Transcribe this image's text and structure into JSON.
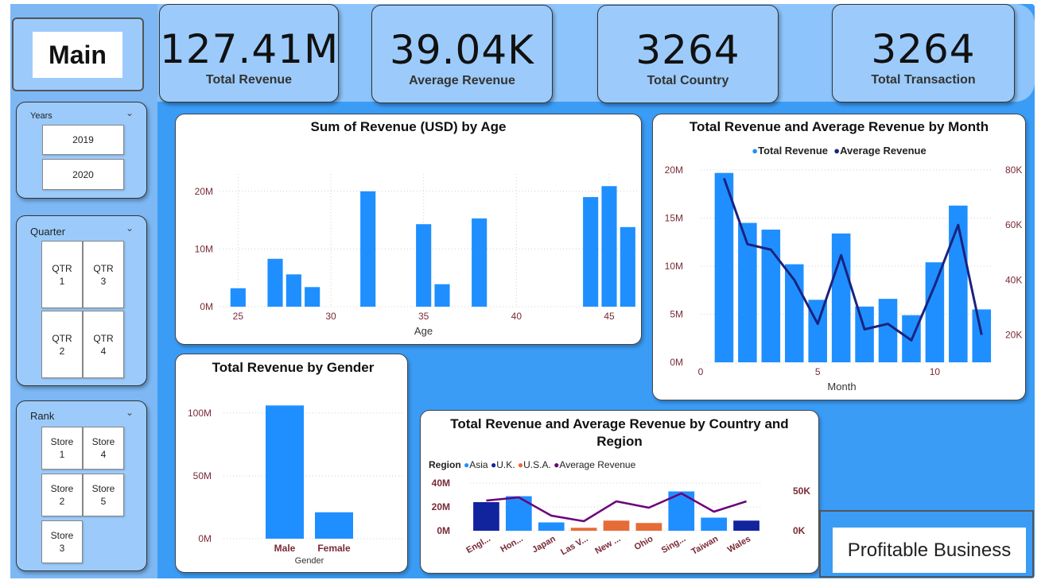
{
  "kpis": [
    {
      "value": "127.41M",
      "label": "Total Revenue"
    },
    {
      "value": "39.04K",
      "label": "Average Revenue"
    },
    {
      "value": "3264",
      "label": "Total Country"
    },
    {
      "value": "3264",
      "label": "Total Transaction"
    }
  ],
  "nav": {
    "main_label": "Main"
  },
  "slicers": {
    "years": {
      "title": "Years",
      "items": [
        "2019",
        "2020"
      ]
    },
    "quarter": {
      "title": "Quarter",
      "items": [
        "QTR\n1",
        "QTR\n3",
        "QTR\n2",
        "QTR\n4"
      ]
    },
    "rank": {
      "title": "Rank",
      "items": [
        "Store\n1",
        "Store\n4",
        "Store\n2",
        "Store\n5",
        "Store\n3"
      ]
    }
  },
  "footer": {
    "text": "Profitable Business"
  },
  "colors": {
    "bar": "#1f8fff",
    "line": "#1a237e",
    "uk": "#12239e",
    "usa": "#e66c37",
    "purple": "#6b007b",
    "tick": "#7a2a35"
  },
  "chart_data": [
    {
      "id": "age",
      "type": "bar",
      "title": "Sum of Revenue (USD) by Age",
      "xlabel": "Age",
      "ylabel": "",
      "x": [
        25,
        27,
        28,
        29,
        32,
        35,
        36,
        38,
        44,
        45,
        46
      ],
      "values": [
        3.2,
        8.3,
        5.6,
        3.4,
        20.0,
        14.3,
        3.9,
        15.3,
        19.0,
        20.9,
        13.8
      ],
      "xlim": [
        24,
        46.5
      ],
      "xticks": [
        25,
        30,
        35,
        40,
        45
      ],
      "ylim": [
        0,
        23
      ],
      "yticks": [
        0,
        10,
        20
      ],
      "ytick_labels": [
        "0M",
        "10M",
        "20M"
      ]
    },
    {
      "id": "month",
      "type": "bar",
      "title": "Total Revenue and Average Revenue by Month",
      "legend": [
        "Total Revenue",
        "Average Revenue"
      ],
      "xlabel": "Month",
      "x": [
        1,
        2,
        3,
        4,
        5,
        6,
        7,
        8,
        9,
        10,
        11,
        12
      ],
      "series": [
        {
          "name": "Total Revenue",
          "type": "bar",
          "axis": "left",
          "values": [
            19.7,
            14.5,
            13.8,
            10.2,
            6.5,
            13.4,
            5.8,
            6.6,
            4.9,
            10.4,
            16.3,
            5.5
          ]
        },
        {
          "name": "Average Revenue",
          "type": "line",
          "axis": "right",
          "values": [
            77000,
            53000,
            51000,
            40000,
            24000,
            49000,
            22000,
            24000,
            18000,
            38000,
            60000,
            20000
          ]
        }
      ],
      "xlim": [
        0,
        12.5
      ],
      "xticks": [
        0,
        5,
        10
      ],
      "ylim": [
        0,
        20
      ],
      "yticks": [
        0,
        5,
        10,
        15,
        20
      ],
      "ytick_labels": [
        "0M",
        "5M",
        "10M",
        "15M",
        "20M"
      ],
      "y2lim": [
        10000,
        80000
      ],
      "y2ticks": [
        20000,
        40000,
        60000,
        80000
      ],
      "y2tick_labels": [
        "20K",
        "40K",
        "60K",
        "80K"
      ]
    },
    {
      "id": "gender",
      "type": "bar",
      "title": "Total Revenue by Gender",
      "xlabel": "Gender",
      "categories": [
        "Male",
        "Female"
      ],
      "values": [
        106,
        21
      ],
      "ylim": [
        0,
        110
      ],
      "yticks": [
        0,
        50,
        100
      ],
      "ytick_labels": [
        "0M",
        "50M",
        "100M"
      ]
    },
    {
      "id": "country",
      "type": "bar",
      "title": "Total Revenue and Average Revenue by Country and Region",
      "legend_title": "Region",
      "legend": [
        "Asia",
        "U.K.",
        "U.S.A.",
        "Average Revenue"
      ],
      "categories": [
        "Engl...",
        "Hon...",
        "Japan",
        "Las V...",
        "New ...",
        "Ohio",
        "Sing...",
        "Taiwan",
        "Wales"
      ],
      "regions": [
        "U.K.",
        "Asia",
        "Asia",
        "U.S.A.",
        "U.S.A.",
        "U.S.A.",
        "Asia",
        "Asia",
        "U.K."
      ],
      "series": [
        {
          "name": "Total Revenue",
          "type": "bar",
          "axis": "left",
          "values": [
            24,
            29,
            7,
            2.5,
            8.5,
            6.5,
            33,
            11,
            8.5
          ]
        },
        {
          "name": "Average Revenue",
          "type": "line",
          "axis": "right",
          "values": [
            38000,
            42000,
            19000,
            12000,
            37000,
            29000,
            47000,
            24000,
            37000
          ]
        }
      ],
      "ylim": [
        0,
        40
      ],
      "yticks": [
        0,
        20,
        40
      ],
      "ytick_labels": [
        "0M",
        "20M",
        "40M"
      ],
      "y2lim": [
        0,
        60000
      ],
      "y2ticks": [
        0,
        50000
      ],
      "y2tick_labels": [
        "0K",
        "50K"
      ]
    }
  ]
}
